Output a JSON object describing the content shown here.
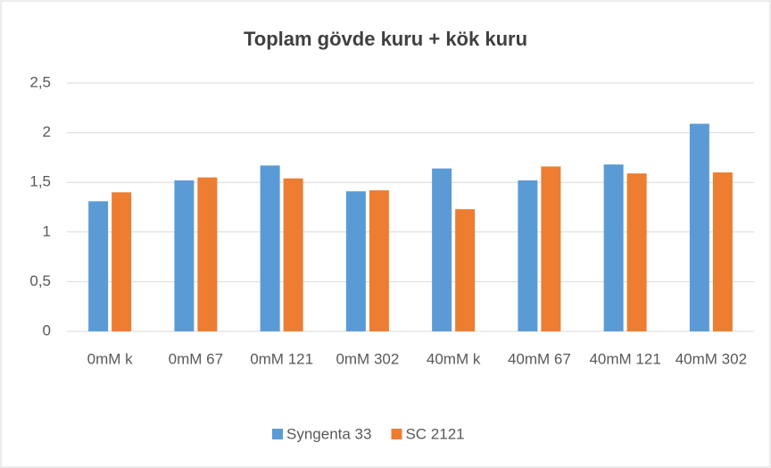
{
  "chart_data": {
    "type": "bar",
    "title": "Toplam gövde kuru + kök kuru",
    "categories": [
      "0mM k",
      "0mM 67",
      "0mM 121",
      "0mM 302",
      "40mM k",
      "40mM 67",
      "40mM 121",
      "40mM 302"
    ],
    "series": [
      {
        "name": "Syngenta 33",
        "color": "#5b9bd5",
        "values": [
          1.31,
          1.52,
          1.67,
          1.41,
          1.64,
          1.52,
          1.68,
          2.09
        ]
      },
      {
        "name": "SC 2121",
        "color": "#ed7d31",
        "values": [
          1.4,
          1.55,
          1.54,
          1.42,
          1.23,
          1.66,
          1.59,
          1.6
        ]
      }
    ],
    "ylim": [
      0,
      2.5
    ],
    "yticks": [
      0,
      {
        "value": 0.5,
        "label": "0,5"
      },
      1,
      {
        "value": 1.5,
        "label": "1,5"
      },
      2,
      {
        "value": 2.5,
        "label": "2,5"
      }
    ],
    "grid": true,
    "legend": "bottom"
  }
}
